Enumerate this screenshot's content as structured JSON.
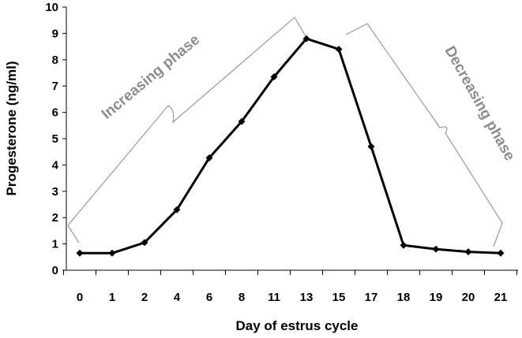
{
  "chart_data": {
    "type": "line",
    "categories": [
      "0",
      "1",
      "2",
      "4",
      "6",
      "8",
      "11",
      "13",
      "15",
      "17",
      "18",
      "19",
      "20",
      "21"
    ],
    "series": [
      {
        "values": [
          0.65,
          0.65,
          1.05,
          2.3,
          4.27,
          5.65,
          7.35,
          8.8,
          8.4,
          4.7,
          0.95,
          0.8,
          0.7,
          0.65
        ]
      }
    ],
    "xlabel": "Day of estrus cycle",
    "ylabel": "Progesterone  (ng/ml)",
    "ylim": [
      0,
      10
    ],
    "yticks": [
      "0",
      "1",
      "2",
      "3",
      "4",
      "5",
      "6",
      "7",
      "8",
      "9",
      "10"
    ],
    "grid": false,
    "annotations": [
      {
        "text": "Increasing phase"
      },
      {
        "text": "Decreasing phase"
      }
    ]
  }
}
